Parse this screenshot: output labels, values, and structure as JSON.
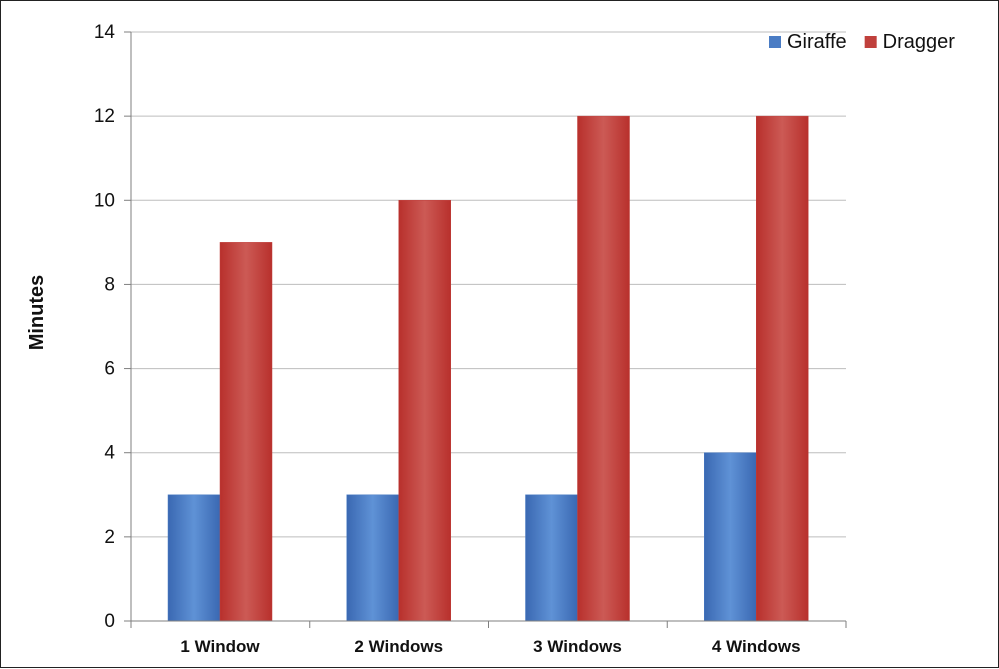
{
  "chart_data": {
    "type": "bar",
    "categories": [
      "1 Window",
      "2 Windows",
      "3 Windows",
      "4 Windows"
    ],
    "series": [
      {
        "name": "Giraffe",
        "values": [
          3,
          3,
          3,
          4
        ],
        "color": "#4a7cc4"
      },
      {
        "name": "Dragger",
        "values": [
          9,
          10,
          12,
          12
        ],
        "color": "#c0403c"
      }
    ],
    "title": "",
    "xlabel": "",
    "ylabel": "Minutes",
    "ylim": [
      0,
      14
    ],
    "yticks": [
      0,
      2,
      4,
      6,
      8,
      10,
      12,
      14
    ],
    "grid": true,
    "legend_position": "top-right"
  }
}
